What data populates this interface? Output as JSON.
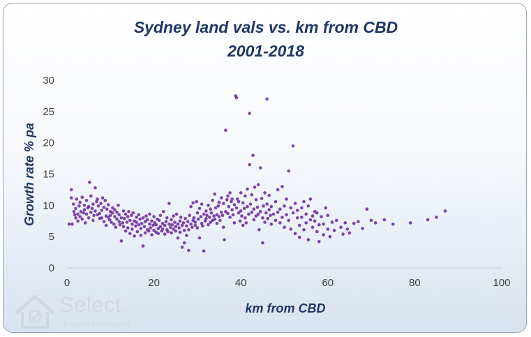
{
  "chart_data": {
    "type": "scatter",
    "title": [
      "Sydney land vals vs. km from CBD",
      "2001-2018"
    ],
    "xlabel": "km from CBD",
    "ylabel": "Growth rate % pa",
    "xlim": [
      0,
      100
    ],
    "ylim": [
      0,
      30
    ],
    "xticks": [
      "0",
      "20",
      "40",
      "60",
      "80",
      "100"
    ],
    "yticks": [
      "0",
      "5",
      "10",
      "15",
      "20",
      "25",
      "30"
    ],
    "grid": false,
    "legend": "none",
    "marker_color": "#7030a0",
    "points": [
      [
        0.5,
        7.0
      ],
      [
        1,
        12.5
      ],
      [
        1,
        11.2
      ],
      [
        1.2,
        7.0
      ],
      [
        1.5,
        10.2
      ],
      [
        1.6,
        9.0
      ],
      [
        1.8,
        8.5
      ],
      [
        2,
        8.0
      ],
      [
        2,
        9.5
      ],
      [
        2.2,
        11.0
      ],
      [
        2.5,
        7.5
      ],
      [
        2.5,
        8.6
      ],
      [
        2.8,
        9.9
      ],
      [
        3,
        10.5
      ],
      [
        3,
        8.2
      ],
      [
        3.2,
        9.0
      ],
      [
        3.5,
        7.8
      ],
      [
        3.5,
        11.3
      ],
      [
        3.8,
        8.8
      ],
      [
        4,
        10.0
      ],
      [
        4,
        9.3
      ],
      [
        4.2,
        7.2
      ],
      [
        4.5,
        8.6
      ],
      [
        4.5,
        10.8
      ],
      [
        4.8,
        9.6
      ],
      [
        5,
        8.0
      ],
      [
        5,
        9.8
      ],
      [
        5.2,
        13.7
      ],
      [
        5.5,
        11.5
      ],
      [
        5.5,
        8.9
      ],
      [
        5.8,
        9.5
      ],
      [
        6,
        10.2
      ],
      [
        6,
        7.6
      ],
      [
        6.2,
        8.4
      ],
      [
        6.5,
        12.8
      ],
      [
        6.5,
        9.1
      ],
      [
        6.8,
        10.6
      ],
      [
        7,
        8.5
      ],
      [
        7,
        11.0
      ],
      [
        7.2,
        9.9
      ],
      [
        7.5,
        7.9
      ],
      [
        7.5,
        8.7
      ],
      [
        7.8,
        10.3
      ],
      [
        8,
        9.2
      ],
      [
        8,
        8.0
      ],
      [
        8.2,
        11.2
      ],
      [
        8.5,
        7.4
      ],
      [
        8.5,
        9.7
      ],
      [
        8.8,
        10.8
      ],
      [
        9,
        8.3
      ],
      [
        9,
        6.8
      ],
      [
        9.2,
        9.4
      ],
      [
        9.5,
        10.1
      ],
      [
        9.5,
        8.1
      ],
      [
        9.8,
        7.7
      ],
      [
        10,
        9.0
      ],
      [
        10,
        8.4
      ],
      [
        10.2,
        7.3
      ],
      [
        10.5,
        9.6
      ],
      [
        10.5,
        8.8
      ],
      [
        10.8,
        7.0
      ],
      [
        11,
        8.2
      ],
      [
        11,
        9.3
      ],
      [
        11.2,
        6.5
      ],
      [
        11.5,
        7.8
      ],
      [
        11.5,
        8.9
      ],
      [
        11.8,
        10.0
      ],
      [
        12,
        7.4
      ],
      [
        12,
        8.5
      ],
      [
        12.2,
        6.9
      ],
      [
        12.5,
        4.3
      ],
      [
        12.5,
        8.0
      ],
      [
        12.8,
        7.2
      ],
      [
        13,
        9.1
      ],
      [
        13,
        6.6
      ],
      [
        13.2,
        7.9
      ],
      [
        13.5,
        8.6
      ],
      [
        13.5,
        5.9
      ],
      [
        13.8,
        7.3
      ],
      [
        14,
        8.2
      ],
      [
        14,
        6.4
      ],
      [
        14.2,
        9.0
      ],
      [
        14.5,
        7.6
      ],
      [
        14.5,
        5.5
      ],
      [
        14.8,
        8.4
      ],
      [
        15,
        7.0
      ],
      [
        15,
        6.2
      ],
      [
        15.2,
        8.8
      ],
      [
        15.5,
        7.5
      ],
      [
        15.5,
        5.1
      ],
      [
        15.8,
        6.7
      ],
      [
        16,
        8.1
      ],
      [
        16,
        7.3
      ],
      [
        16.2,
        5.8
      ],
      [
        16.5,
        6.9
      ],
      [
        16.5,
        8.5
      ],
      [
        16.8,
        7.8
      ],
      [
        17,
        6.3
      ],
      [
        17,
        5.2
      ],
      [
        17.2,
        7.1
      ],
      [
        17.5,
        8.0
      ],
      [
        17.5,
        3.5
      ],
      [
        17.8,
        6.6
      ],
      [
        18,
        7.4
      ],
      [
        18,
        5.6
      ],
      [
        18.2,
        8.3
      ],
      [
        18.5,
        6.1
      ],
      [
        18.5,
        7.7
      ],
      [
        18.8,
        5.9
      ],
      [
        19,
        7.0
      ],
      [
        19,
        8.6
      ],
      [
        19.2,
        6.4
      ],
      [
        19.5,
        5.3
      ],
      [
        19.5,
        7.5
      ],
      [
        19.8,
        6.8
      ],
      [
        20,
        8.2
      ],
      [
        20,
        6.0
      ],
      [
        20.2,
        7.2
      ],
      [
        20.5,
        5.7
      ],
      [
        20.5,
        6.9
      ],
      [
        20.8,
        7.8
      ],
      [
        21,
        6.3
      ],
      [
        21,
        5.5
      ],
      [
        21.2,
        7.6
      ],
      [
        21.5,
        6.6
      ],
      [
        21.5,
        8.4
      ],
      [
        21.8,
        5.9
      ],
      [
        22,
        7.1
      ],
      [
        22,
        6.2
      ],
      [
        22.2,
        9.0
      ],
      [
        22.5,
        6.8
      ],
      [
        22.5,
        5.4
      ],
      [
        22.8,
        7.4
      ],
      [
        23,
        6.1
      ],
      [
        23,
        8.0
      ],
      [
        23.2,
        5.8
      ],
      [
        23.5,
        7.0
      ],
      [
        23.5,
        10.3
      ],
      [
        23.8,
        6.5
      ],
      [
        24,
        7.7
      ],
      [
        24,
        5.6
      ],
      [
        24.2,
        6.9
      ],
      [
        24.5,
        8.3
      ],
      [
        24.5,
        6.2
      ],
      [
        24.8,
        7.3
      ],
      [
        25,
        5.9
      ],
      [
        25,
        6.6
      ],
      [
        25.2,
        8.6
      ],
      [
        25.5,
        7.0
      ],
      [
        25.5,
        4.8
      ],
      [
        25.8,
        6.4
      ],
      [
        26,
        7.5
      ],
      [
        26,
        5.7
      ],
      [
        26.2,
        8.1
      ],
      [
        26.5,
        6.8
      ],
      [
        26.5,
        3.3
      ],
      [
        26.8,
        7.2
      ],
      [
        27,
        6.0
      ],
      [
        27,
        4.0
      ],
      [
        27.2,
        7.9
      ],
      [
        27.5,
        5.2
      ],
      [
        27.5,
        6.7
      ],
      [
        27.8,
        7.4
      ],
      [
        28,
        2.8
      ],
      [
        28,
        6.1
      ],
      [
        28.2,
        8.4
      ],
      [
        28.5,
        7.0
      ],
      [
        28.5,
        9.8
      ],
      [
        28.8,
        6.5
      ],
      [
        29,
        7.6
      ],
      [
        29,
        10.4
      ],
      [
        29.2,
        8.0
      ],
      [
        29.5,
        6.8
      ],
      [
        29.5,
        7.3
      ],
      [
        29.8,
        10.6
      ],
      [
        30,
        8.8
      ],
      [
        30,
        6.4
      ],
      [
        30.2,
        7.8
      ],
      [
        30.5,
        9.5
      ],
      [
        30.5,
        4.8
      ],
      [
        30.8,
        8.2
      ],
      [
        31,
        7.1
      ],
      [
        31,
        10.2
      ],
      [
        31.2,
        6.7
      ],
      [
        31.5,
        8.6
      ],
      [
        31.5,
        2.7
      ],
      [
        31.8,
        7.5
      ],
      [
        32,
        9.1
      ],
      [
        32,
        7.9
      ],
      [
        32.2,
        8.4
      ],
      [
        32.5,
        6.9
      ],
      [
        32.5,
        10.0
      ],
      [
        32.8,
        8.1
      ],
      [
        33,
        7.3
      ],
      [
        33,
        9.4
      ],
      [
        33.2,
        8.8
      ],
      [
        33.5,
        7.6
      ],
      [
        33.5,
        10.8
      ],
      [
        33.8,
        8.3
      ],
      [
        34,
        11.8
      ],
      [
        34,
        7.8
      ],
      [
        34.2,
        9.6
      ],
      [
        34.5,
        8.5
      ],
      [
        34.5,
        7.1
      ],
      [
        34.8,
        9.9
      ],
      [
        35,
        8.2
      ],
      [
        35,
        10.5
      ],
      [
        35.2,
        7.6
      ],
      [
        35.5,
        8.9
      ],
      [
        35.5,
        11.2
      ],
      [
        35.8,
        8.4
      ],
      [
        36,
        10.3
      ],
      [
        36,
        6.5
      ],
      [
        36.2,
        4.5
      ],
      [
        36.5,
        22.0
      ],
      [
        36.5,
        9.0
      ],
      [
        36.8,
        10.9
      ],
      [
        37,
        8.7
      ],
      [
        37,
        11.5
      ],
      [
        37.2,
        9.8
      ],
      [
        37.5,
        12.0
      ],
      [
        37.5,
        8.1
      ],
      [
        37.8,
        10.6
      ],
      [
        38,
        9.3
      ],
      [
        38,
        11.0
      ],
      [
        38.2,
        8.5
      ],
      [
        38.5,
        10.1
      ],
      [
        38.5,
        7.2
      ],
      [
        38.8,
        27.5
      ],
      [
        39,
        27.2
      ],
      [
        39,
        9.6
      ],
      [
        39.2,
        11.0
      ],
      [
        39.5,
        8.8
      ],
      [
        39.5,
        10.6
      ],
      [
        39.8,
        7.5
      ],
      [
        40,
        9.1
      ],
      [
        40,
        12.0
      ],
      [
        40.2,
        8.3
      ],
      [
        40.5,
        10.4
      ],
      [
        40.5,
        6.8
      ],
      [
        40.8,
        9.5
      ],
      [
        41,
        11.5
      ],
      [
        41,
        8.0
      ],
      [
        41.2,
        7.2
      ],
      [
        41.5,
        9.8
      ],
      [
        41.5,
        12.6
      ],
      [
        41.8,
        8.6
      ],
      [
        42,
        16.5
      ],
      [
        42,
        24.7
      ],
      [
        42.2,
        10.2
      ],
      [
        42.5,
        8.9
      ],
      [
        42.5,
        11.7
      ],
      [
        42.8,
        18.0
      ],
      [
        43,
        9.4
      ],
      [
        43,
        7.7
      ],
      [
        43.2,
        12.9
      ],
      [
        43.5,
        8.3
      ],
      [
        43.5,
        10.9
      ],
      [
        43.8,
        9.7
      ],
      [
        44,
        13.3
      ],
      [
        44,
        8.6
      ],
      [
        44.2,
        6.1
      ],
      [
        44.5,
        16.0
      ],
      [
        44.5,
        9.0
      ],
      [
        44.8,
        11.1
      ],
      [
        45,
        8.0
      ],
      [
        45,
        4.0
      ],
      [
        45.2,
        9.9
      ],
      [
        45.5,
        12.0
      ],
      [
        45.5,
        7.3
      ],
      [
        45.8,
        8.8
      ],
      [
        46,
        27.0
      ],
      [
        46,
        10.2
      ],
      [
        46.2,
        7.9
      ],
      [
        46.5,
        9.3
      ],
      [
        46.5,
        11.6
      ],
      [
        46.8,
        8.4
      ],
      [
        47,
        7.0
      ],
      [
        47,
        9.8
      ],
      [
        47.5,
        8.6
      ],
      [
        48,
        10.6
      ],
      [
        48,
        7.6
      ],
      [
        48.5,
        8.9
      ],
      [
        48.5,
        12.5
      ],
      [
        49,
        9.4
      ],
      [
        49,
        7.2
      ],
      [
        49.5,
        13.0
      ],
      [
        49.5,
        8.1
      ],
      [
        50,
        9.9
      ],
      [
        50,
        6.5
      ],
      [
        50.5,
        11.0
      ],
      [
        50.5,
        8.5
      ],
      [
        51,
        15.5
      ],
      [
        51,
        7.6
      ],
      [
        51.5,
        9.6
      ],
      [
        51.5,
        6.2
      ],
      [
        52,
        19.5
      ],
      [
        52,
        8.8
      ],
      [
        52.5,
        10.3
      ],
      [
        52.5,
        5.5
      ],
      [
        53,
        8.0
      ],
      [
        53,
        9.2
      ],
      [
        53.5,
        6.8
      ],
      [
        53.5,
        4.9
      ],
      [
        54,
        9.6
      ],
      [
        54,
        8.1
      ],
      [
        54.5,
        6.1
      ],
      [
        54.5,
        10.6
      ],
      [
        55,
        8.6
      ],
      [
        55,
        7.2
      ],
      [
        55.5,
        4.5
      ],
      [
        55.5,
        9.9
      ],
      [
        56,
        7.7
      ],
      [
        56,
        11.0
      ],
      [
        56.5,
        8.3
      ],
      [
        56.5,
        6.5
      ],
      [
        57,
        9.0
      ],
      [
        57,
        7.5
      ],
      [
        57.5,
        5.8
      ],
      [
        57.5,
        8.8
      ],
      [
        58,
        6.9
      ],
      [
        58,
        4.2
      ],
      [
        58.5,
        8.2
      ],
      [
        59,
        7.0
      ],
      [
        59,
        5.3
      ],
      [
        59.5,
        9.6
      ],
      [
        60,
        6.2
      ],
      [
        60,
        8.4
      ],
      [
        60.5,
        5.0
      ],
      [
        61,
        7.3
      ],
      [
        61.5,
        6.0
      ],
      [
        62,
        7.6
      ],
      [
        63,
        6.5
      ],
      [
        63.5,
        5.4
      ],
      [
        64,
        7.2
      ],
      [
        64.5,
        6.2
      ],
      [
        65,
        5.6
      ],
      [
        66,
        7.1
      ],
      [
        67,
        7.4
      ],
      [
        68,
        6.3
      ],
      [
        69,
        9.4
      ],
      [
        70,
        7.6
      ],
      [
        71,
        7.2
      ],
      [
        73,
        7.7
      ],
      [
        75,
        7.0
      ],
      [
        79,
        7.2
      ],
      [
        83,
        7.7
      ],
      [
        85,
        8.1
      ],
      [
        87,
        9.1
      ]
    ]
  },
  "watermark": {
    "name": "Select",
    "sub": "ResidentialProperty"
  }
}
